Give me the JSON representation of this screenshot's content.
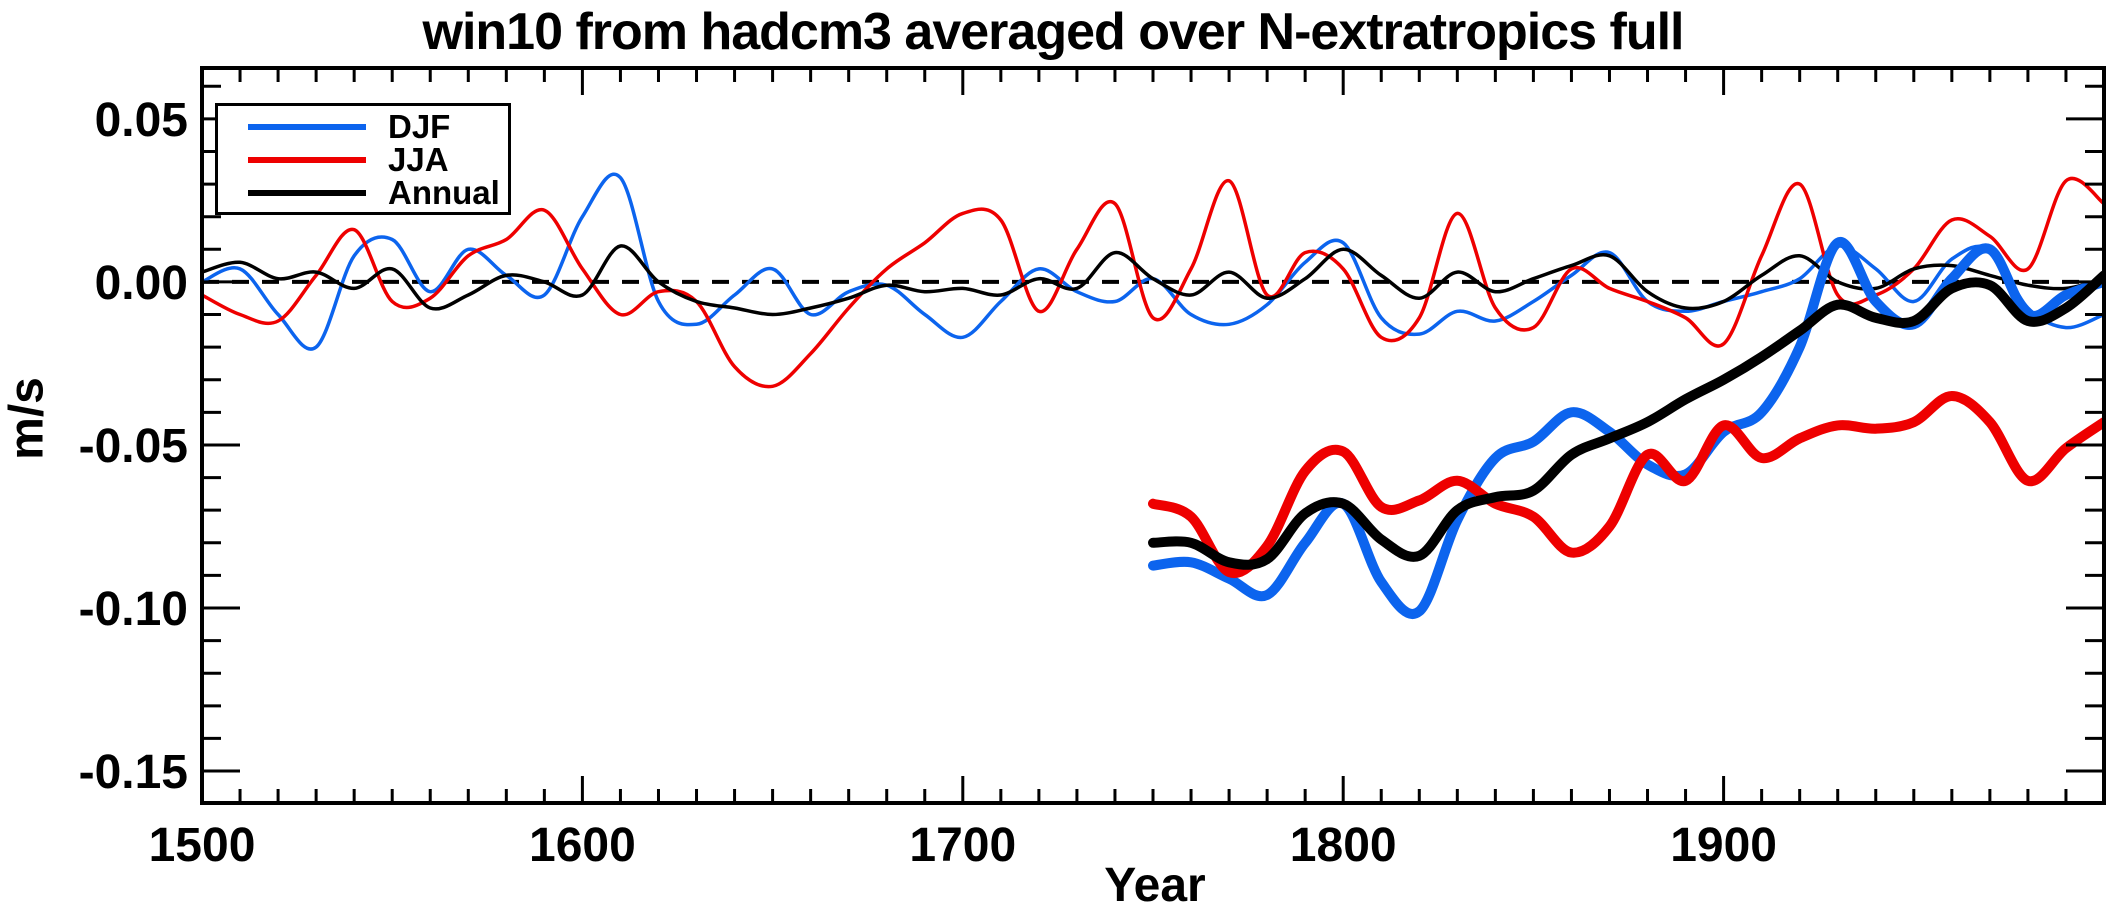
{
  "title": "win10 from hadcm3 averaged over N-extratropics full",
  "axes": {
    "ylabel": "m/s",
    "xlabel": "Year",
    "x_tick_labels": [
      "1500",
      "1600",
      "1700",
      "1800",
      "1900"
    ],
    "x_tick_values": [
      1500,
      1600,
      1700,
      1800,
      1900
    ],
    "y_tick_labels": [
      "0.05",
      "0.00",
      "-0.05",
      "-0.10",
      "-0.15"
    ],
    "y_tick_values": [
      0.05,
      0.0,
      -0.05,
      -0.1,
      -0.15
    ]
  },
  "legend": {
    "items": [
      {
        "label": "DJF",
        "color": "#0c64ee"
      },
      {
        "label": "JJA",
        "color": "#ee0000"
      },
      {
        "label": "Annual",
        "color": "#000000"
      }
    ]
  },
  "colors": {
    "djf": "#0c64ee",
    "jja": "#ee0000",
    "annual": "#000000",
    "zero_line": "#000000",
    "axis": "#000000",
    "background": "#ffffff"
  },
  "chart_data": {
    "type": "line",
    "title": "win10 from hadcm3 averaged over N-extratropics full",
    "xlabel": "Year",
    "ylabel": "m/s",
    "xlim": [
      1500,
      2000
    ],
    "ylim": [
      -0.1598,
      0.0656
    ],
    "x_major_tick_step": 100,
    "x_minor_tick_step": 10,
    "y_major_tick_step": 0.05,
    "y_minor_tick_step": 0.01,
    "grid": false,
    "zero_line_dashed": true,
    "legend_position": "top-left",
    "series": [
      {
        "name": "DJF",
        "color": "#0c64ee",
        "width": "thin",
        "x": [
          1500,
          1510,
          1520,
          1530,
          1540,
          1550,
          1560,
          1570,
          1580,
          1590,
          1600,
          1610,
          1620,
          1630,
          1640,
          1650,
          1660,
          1670,
          1680,
          1690,
          1700,
          1710,
          1720,
          1730,
          1740,
          1750,
          1760,
          1770,
          1780,
          1790,
          1800,
          1810,
          1820,
          1830,
          1840,
          1850,
          1860,
          1870,
          1880,
          1890,
          1900,
          1910,
          1920,
          1930,
          1940,
          1950,
          1960,
          1970,
          1980,
          1990,
          2000
        ],
        "y": [
          0.0,
          0.004,
          -0.01,
          -0.02,
          0.008,
          0.013,
          -0.003,
          0.01,
          0.002,
          -0.004,
          0.02,
          0.032,
          -0.006,
          -0.013,
          -0.004,
          0.004,
          -0.01,
          -0.003,
          -0.001,
          -0.01,
          -0.017,
          -0.006,
          0.004,
          -0.003,
          -0.006,
          0.001,
          -0.01,
          -0.013,
          -0.007,
          0.006,
          0.012,
          -0.011,
          -0.016,
          -0.009,
          -0.012,
          -0.006,
          0.002,
          0.009,
          -0.006,
          -0.009,
          -0.006,
          -0.003,
          0.001,
          0.011,
          0.004,
          -0.006,
          0.007,
          0.01,
          -0.008,
          -0.014,
          -0.01
        ]
      },
      {
        "name": "JJA",
        "color": "#ee0000",
        "width": "thin",
        "x": [
          1500,
          1510,
          1520,
          1530,
          1540,
          1550,
          1560,
          1570,
          1580,
          1590,
          1600,
          1610,
          1620,
          1630,
          1640,
          1650,
          1660,
          1670,
          1680,
          1690,
          1700,
          1710,
          1720,
          1730,
          1740,
          1750,
          1760,
          1770,
          1780,
          1790,
          1800,
          1810,
          1820,
          1830,
          1840,
          1850,
          1860,
          1870,
          1880,
          1890,
          1900,
          1910,
          1920,
          1930,
          1940,
          1950,
          1960,
          1970,
          1980,
          1990,
          2000
        ],
        "y": [
          -0.004,
          -0.01,
          -0.012,
          0.002,
          0.016,
          -0.006,
          -0.005,
          0.008,
          0.013,
          0.022,
          0.004,
          -0.01,
          -0.003,
          -0.006,
          -0.026,
          -0.032,
          -0.022,
          -0.008,
          0.004,
          0.012,
          0.021,
          0.019,
          -0.009,
          0.01,
          0.024,
          -0.011,
          0.004,
          0.031,
          -0.004,
          0.009,
          0.004,
          -0.017,
          -0.011,
          0.021,
          -0.008,
          -0.014,
          0.004,
          -0.002,
          -0.006,
          -0.011,
          -0.019,
          0.008,
          0.03,
          -0.004,
          -0.004,
          0.004,
          0.019,
          0.014,
          0.004,
          0.031,
          0.024
        ]
      },
      {
        "name": "Annual",
        "color": "#000000",
        "width": "thin",
        "x": [
          1500,
          1510,
          1520,
          1530,
          1540,
          1550,
          1560,
          1570,
          1580,
          1590,
          1600,
          1610,
          1620,
          1630,
          1640,
          1650,
          1660,
          1670,
          1680,
          1690,
          1700,
          1710,
          1720,
          1730,
          1740,
          1750,
          1760,
          1770,
          1780,
          1790,
          1800,
          1810,
          1820,
          1830,
          1840,
          1850,
          1860,
          1870,
          1880,
          1890,
          1900,
          1910,
          1920,
          1930,
          1940,
          1950,
          1960,
          1970,
          1980,
          1990,
          2000
        ],
        "y": [
          0.003,
          0.006,
          0.001,
          0.003,
          -0.002,
          0.004,
          -0.008,
          -0.004,
          0.002,
          0.0,
          -0.004,
          0.011,
          0.0,
          -0.006,
          -0.008,
          -0.01,
          -0.008,
          -0.005,
          -0.001,
          -0.003,
          -0.002,
          -0.004,
          0.001,
          -0.002,
          0.009,
          0.001,
          -0.004,
          0.003,
          -0.005,
          0.001,
          0.01,
          0.002,
          -0.005,
          0.003,
          -0.003,
          0.001,
          0.005,
          0.008,
          -0.003,
          -0.008,
          -0.006,
          0.002,
          0.008,
          0.0,
          -0.002,
          0.004,
          0.005,
          0.002,
          -0.001,
          -0.002,
          0.001
        ]
      },
      {
        "name": "DJF smoothed",
        "color": "#0c64ee",
        "width": "thick",
        "x": [
          1750,
          1760,
          1770,
          1780,
          1790,
          1800,
          1810,
          1820,
          1830,
          1840,
          1850,
          1860,
          1870,
          1880,
          1890,
          1900,
          1910,
          1920,
          1930,
          1940,
          1950,
          1960,
          1970,
          1980,
          1990,
          2000
        ],
        "y": [
          -0.087,
          -0.086,
          -0.091,
          -0.096,
          -0.08,
          -0.068,
          -0.092,
          -0.101,
          -0.073,
          -0.054,
          -0.049,
          -0.04,
          -0.046,
          -0.056,
          -0.059,
          -0.046,
          -0.04,
          -0.02,
          0.012,
          -0.006,
          -0.013,
          0.001,
          0.01,
          -0.01,
          -0.004,
          0.0
        ]
      },
      {
        "name": "JJA smoothed",
        "color": "#ee0000",
        "width": "thick",
        "x": [
          1750,
          1760,
          1770,
          1780,
          1790,
          1800,
          1810,
          1820,
          1830,
          1840,
          1850,
          1860,
          1870,
          1880,
          1890,
          1900,
          1910,
          1920,
          1930,
          1940,
          1950,
          1960,
          1970,
          1980,
          1990,
          2000
        ],
        "y": [
          -0.068,
          -0.072,
          -0.089,
          -0.081,
          -0.058,
          -0.052,
          -0.069,
          -0.067,
          -0.061,
          -0.068,
          -0.072,
          -0.083,
          -0.075,
          -0.053,
          -0.061,
          -0.044,
          -0.054,
          -0.048,
          -0.044,
          -0.045,
          -0.043,
          -0.035,
          -0.043,
          -0.061,
          -0.051,
          -0.043
        ]
      },
      {
        "name": "Annual smoothed",
        "color": "#000000",
        "width": "thick",
        "x": [
          1750,
          1760,
          1770,
          1780,
          1790,
          1800,
          1810,
          1820,
          1830,
          1840,
          1850,
          1860,
          1870,
          1880,
          1890,
          1900,
          1910,
          1920,
          1930,
          1940,
          1950,
          1960,
          1970,
          1980,
          1990,
          2000
        ],
        "y": [
          -0.08,
          -0.08,
          -0.086,
          -0.085,
          -0.071,
          -0.068,
          -0.079,
          -0.084,
          -0.07,
          -0.066,
          -0.064,
          -0.053,
          -0.048,
          -0.043,
          -0.036,
          -0.03,
          -0.023,
          -0.015,
          -0.007,
          -0.011,
          -0.012,
          -0.002,
          -0.001,
          -0.012,
          -0.008,
          0.002
        ]
      }
    ]
  }
}
